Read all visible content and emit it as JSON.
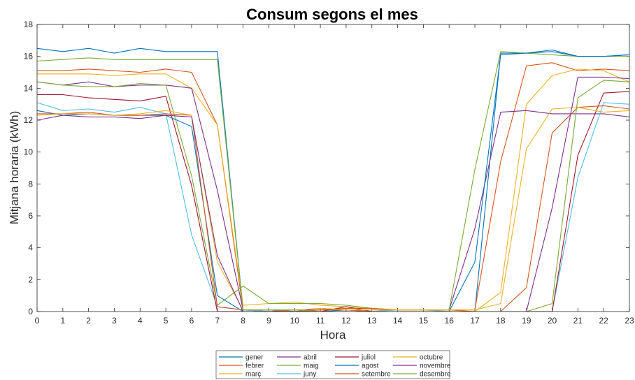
{
  "chart_data": {
    "type": "line",
    "title": "Consum segons el mes",
    "xlabel": "Hora",
    "ylabel": "Mitjana horaria (kWh)",
    "xlim": [
      0,
      23
    ],
    "ylim": [
      0,
      18
    ],
    "xticks": [
      0,
      1,
      2,
      3,
      4,
      5,
      6,
      7,
      8,
      9,
      10,
      11,
      12,
      13,
      14,
      15,
      16,
      17,
      18,
      19,
      20,
      21,
      22,
      23
    ],
    "yticks": [
      0,
      2,
      4,
      6,
      8,
      10,
      12,
      14,
      16,
      18
    ],
    "x": [
      0,
      1,
      2,
      3,
      4,
      5,
      6,
      7,
      8,
      9,
      10,
      11,
      12,
      13,
      14,
      15,
      16,
      17,
      18,
      19,
      20,
      21,
      22,
      23
    ],
    "legend_position": "bottom-center",
    "legend_columns": 4,
    "series": [
      {
        "name": "gener",
        "color": "#0072BD",
        "values": [
          16.5,
          16.3,
          16.5,
          16.2,
          16.5,
          16.3,
          16.3,
          16.3,
          0.1,
          0.0,
          0.1,
          0.0,
          0.1,
          0.0,
          0.0,
          0.0,
          0.0,
          0.0,
          16.2,
          16.2,
          16.4,
          16.0,
          16.0,
          16.1
        ]
      },
      {
        "name": "febrer",
        "color": "#D95319",
        "values": [
          15.1,
          15.1,
          15.2,
          15.1,
          15.0,
          15.2,
          15.0,
          11.7,
          0.1,
          0.1,
          0.0,
          0.1,
          0.1,
          0.0,
          0.1,
          0.1,
          0.1,
          0.1,
          9.4,
          15.4,
          15.6,
          15.1,
          15.2,
          15.1
        ]
      },
      {
        "name": "març",
        "color": "#EDB120",
        "values": [
          14.9,
          14.9,
          14.9,
          14.8,
          14.9,
          14.9,
          14.0,
          11.7,
          0.4,
          0.5,
          0.6,
          0.4,
          0.3,
          0.2,
          0.1,
          0.1,
          0.0,
          0.0,
          1.2,
          13.0,
          14.8,
          15.2,
          15.1,
          14.4
        ]
      },
      {
        "name": "abril",
        "color": "#7E2F8E",
        "values": [
          14.4,
          14.2,
          14.4,
          14.1,
          14.2,
          14.2,
          14.0,
          7.6,
          0.1,
          0.1,
          0.0,
          0.2,
          0.1,
          0.1,
          0.1,
          0.1,
          0.1,
          5.2,
          12.5,
          12.6,
          12.4,
          12.4,
          12.4,
          12.2
        ]
      },
      {
        "name": "maig",
        "color": "#77AC30",
        "values": [
          14.4,
          14.2,
          14.1,
          14.1,
          14.3,
          14.2,
          8.5,
          0.4,
          1.6,
          0.5,
          0.5,
          0.5,
          0.4,
          0.2,
          0.1,
          0.1,
          0.1,
          8.9,
          16.3,
          16.2,
          16.1,
          16.0,
          16.0,
          16.0
        ]
      },
      {
        "name": "juny",
        "color": "#4DBEEE",
        "values": [
          13.1,
          12.6,
          12.7,
          12.5,
          12.8,
          12.4,
          4.8,
          0.3,
          0.1,
          0.0,
          0.0,
          0.0,
          0.0,
          0.0,
          0.1,
          0.1,
          0.0,
          0.0,
          0.0,
          0.0,
          0.0,
          8.4,
          13.1,
          13.0
        ]
      },
      {
        "name": "juliol",
        "color": "#A2142F",
        "values": [
          13.6,
          13.6,
          13.4,
          13.3,
          13.2,
          13.5,
          7.9,
          0.0,
          0.0,
          0.0,
          0.0,
          0.0,
          0.3,
          0.0,
          0.0,
          0.0,
          0.0,
          0.0,
          0.0,
          0.0,
          0.0,
          9.8,
          13.7,
          13.8
        ]
      },
      {
        "name": "agost",
        "color": "#0072BD",
        "values": [
          12.6,
          12.3,
          12.4,
          12.3,
          12.3,
          12.3,
          11.6,
          1.0,
          0.0,
          0.0,
          0.0,
          0.0,
          0.0,
          0.0,
          0.0,
          0.0,
          0.0,
          3.1,
          16.1,
          16.2,
          16.3,
          16.0,
          16.0,
          16.1
        ]
      },
      {
        "name": "setembre",
        "color": "#D95319",
        "values": [
          12.4,
          12.4,
          12.5,
          12.3,
          12.3,
          12.4,
          12.3,
          0.3,
          0.1,
          0.1,
          0.0,
          0.1,
          0.2,
          0.2,
          0.1,
          0.1,
          0.1,
          0.0,
          0.0,
          1.5,
          11.2,
          12.8,
          12.9,
          12.7
        ]
      },
      {
        "name": "octubre",
        "color": "#EDB120",
        "values": [
          12.3,
          12.4,
          12.4,
          12.3,
          12.4,
          12.6,
          12.3,
          3.1,
          0.1,
          0.1,
          0.1,
          0.2,
          0.1,
          0.1,
          0.1,
          0.1,
          0.1,
          0.1,
          0.5,
          10.2,
          12.7,
          12.8,
          12.5,
          12.6
        ]
      },
      {
        "name": "novembre",
        "color": "#7E2F8E",
        "values": [
          12.0,
          12.3,
          12.2,
          12.2,
          12.1,
          12.3,
          12.2,
          3.5,
          0.0,
          0.0,
          0.0,
          0.0,
          0.0,
          0.0,
          0.0,
          0.0,
          0.0,
          0.0,
          0.0,
          0.0,
          6.5,
          14.7,
          14.7,
          14.6
        ]
      },
      {
        "name": "desembre",
        "color": "#77AC30",
        "values": [
          15.7,
          15.8,
          15.9,
          15.8,
          15.8,
          15.8,
          15.8,
          15.8,
          0.1,
          0.1,
          0.1,
          0.0,
          0.0,
          0.0,
          0.0,
          0.0,
          0.0,
          0.0,
          0.0,
          0.0,
          0.5,
          13.4,
          14.5,
          14.4
        ]
      }
    ]
  }
}
